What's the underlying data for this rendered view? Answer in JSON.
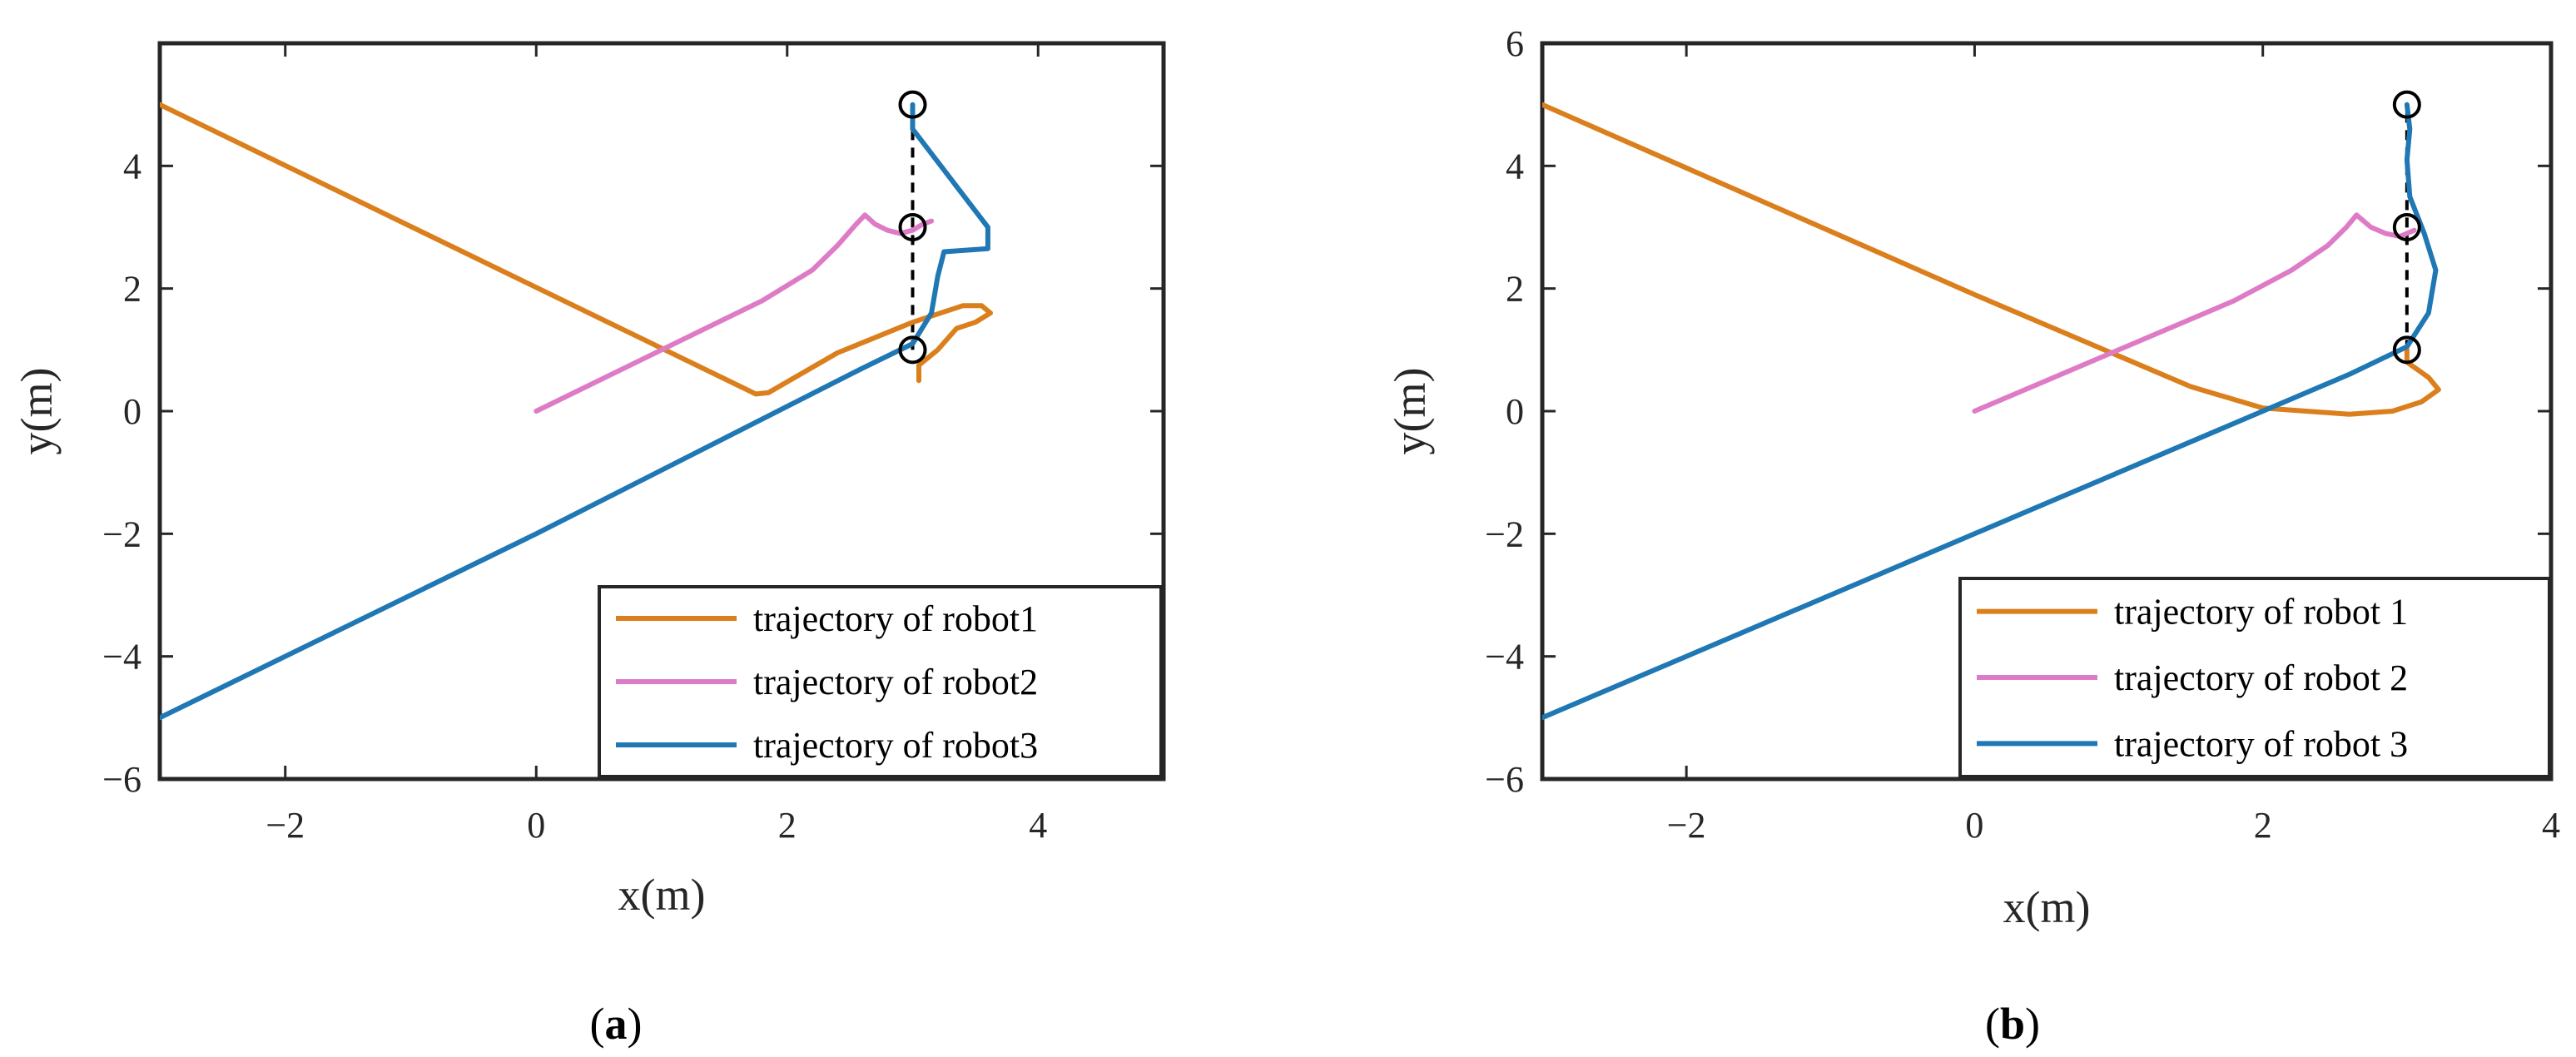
{
  "colors": {
    "robot1": "#D95319",
    "robot1_render": "#DA7F1C",
    "robot2": "#DE7BC6",
    "robot3": "#1F77B4",
    "axes": "#262626",
    "formation": "#000000"
  },
  "chart_data": [
    {
      "panel": "a",
      "type": "line",
      "caption_open": "(",
      "caption_letter": "a",
      "caption_close": ")",
      "xlabel": "x(m)",
      "ylabel": "y(m)",
      "xlim": [
        -3,
        5
      ],
      "ylim": [
        -6,
        6
      ],
      "xticks": [
        -2,
        0,
        2,
        4
      ],
      "yticks": [
        -6,
        -4,
        -2,
        0,
        2,
        4
      ],
      "xtick_labels": [
        "−2",
        "0",
        "2",
        "4"
      ],
      "ytick_labels": [
        "−6",
        "−4",
        "−2",
        "0",
        "2",
        "4"
      ],
      "legend_location": "bottom-right",
      "series": [
        {
          "name": "trajectory of robot1",
          "color_key": "robot1_render",
          "x": [
            -3,
            1.75,
            1.85,
            2.4,
            3.0,
            3.4,
            3.55,
            3.62,
            3.5,
            3.35,
            3.2,
            3.05,
            3.05
          ],
          "y": [
            5,
            0.28,
            0.3,
            0.95,
            1.45,
            1.72,
            1.72,
            1.6,
            1.45,
            1.35,
            1.0,
            0.75,
            0.5
          ]
        },
        {
          "name": "trajectory of robot2",
          "color_key": "robot2",
          "x": [
            0,
            1.0,
            1.8,
            2.2,
            2.4,
            2.55,
            2.62,
            2.7,
            2.8,
            2.9,
            3.0,
            3.08,
            3.15
          ],
          "y": [
            0,
            1.0,
            1.8,
            2.3,
            2.7,
            3.05,
            3.2,
            3.05,
            2.95,
            2.9,
            2.95,
            3.05,
            3.1
          ]
        },
        {
          "name": "trajectory of robot3",
          "color_key": "robot3",
          "x": [
            -3,
            0,
            2.6,
            3.0,
            3.15,
            3.2,
            3.25,
            3.6,
            3.6,
            3.3,
            3.0,
            3.0
          ],
          "y": [
            -5,
            -2,
            0.7,
            1.1,
            1.6,
            2.2,
            2.6,
            2.65,
            3.0,
            3.8,
            4.6,
            5.0
          ]
        }
      ],
      "markers": {
        "x": [
          3,
          3,
          3
        ],
        "y": [
          5,
          3,
          1
        ]
      },
      "formation_line": {
        "x": [
          3,
          3
        ],
        "y": [
          1,
          5
        ]
      }
    },
    {
      "panel": "b",
      "type": "line",
      "caption_open": "(",
      "caption_letter": "b",
      "caption_close": ")",
      "xlabel": "x(m)",
      "ylabel": "y(m)",
      "xlim": [
        -3,
        4
      ],
      "ylim": [
        -6,
        6
      ],
      "xticks": [
        -2,
        0,
        2,
        4
      ],
      "yticks": [
        -6,
        -4,
        -2,
        0,
        2,
        4,
        6
      ],
      "xtick_labels": [
        "−2",
        "0",
        "2",
        "4"
      ],
      "ytick_labels": [
        "−6",
        "−4",
        "−2",
        "0",
        "2",
        "4",
        "6"
      ],
      "legend_location": "bottom-right",
      "series": [
        {
          "name": "trajectory of robot 1",
          "color_key": "robot1_render",
          "x": [
            -3,
            0,
            1.5,
            2.0,
            2.6,
            2.9,
            3.1,
            3.22,
            3.15,
            3.0,
            3.0
          ],
          "y": [
            5,
            1.9,
            0.4,
            0.05,
            -0.05,
            0.0,
            0.15,
            0.35,
            0.55,
            0.8,
            1.0
          ]
        },
        {
          "name": "trajectory of robot 2",
          "color_key": "robot2",
          "x": [
            0,
            1.0,
            1.8,
            2.2,
            2.45,
            2.58,
            2.65,
            2.75,
            2.85,
            2.95,
            3.05
          ],
          "y": [
            0,
            1.0,
            1.8,
            2.3,
            2.7,
            3.0,
            3.2,
            3.0,
            2.9,
            2.85,
            2.95
          ]
        },
        {
          "name": "trajectory of robot 3",
          "color_key": "robot3",
          "x": [
            -3,
            0,
            2.6,
            3.0,
            3.15,
            3.2,
            3.12,
            3.02,
            3.0,
            3.02,
            3.0
          ],
          "y": [
            -5,
            -2,
            0.6,
            1.05,
            1.6,
            2.3,
            2.9,
            3.5,
            4.1,
            4.6,
            5.0
          ]
        }
      ],
      "markers": {
        "x": [
          3,
          3,
          3
        ],
        "y": [
          5,
          3,
          1
        ]
      },
      "formation_line": {
        "x": [
          3,
          3
        ],
        "y": [
          1,
          5
        ]
      }
    }
  ]
}
